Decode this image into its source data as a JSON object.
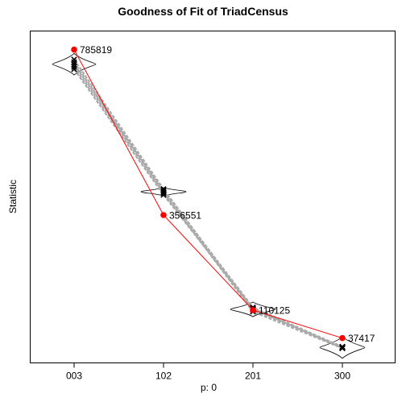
{
  "chart_data": {
    "type": "scatter",
    "title": "Goodness of Fit of TriadCensus",
    "xlabel": "p: 0",
    "ylabel": "Statistic",
    "categories": [
      "003",
      "102",
      "201",
      "300"
    ],
    "ylim": [
      -5000,
      810000
    ],
    "observed": {
      "values": [
        785819,
        356551,
        110125,
        37417
      ],
      "labels": [
        "785819",
        "356551",
        "110125",
        "37417"
      ],
      "color": "#ff0000"
    },
    "simulated": {
      "color": "#aaaaaa",
      "runs": [
        [
          735000,
          409000,
          114000,
          12000
        ],
        [
          741000,
          414000,
          111000,
          13000
        ],
        [
          747000,
          420000,
          117000,
          14500
        ],
        [
          753000,
          416000,
          106000,
          11000
        ],
        [
          760000,
          424000,
          112000,
          15000
        ]
      ],
      "means": [
        748000,
        417000,
        112000,
        13000
      ],
      "spreads": [
        28000,
        11000,
        19000,
        28000
      ],
      "violin_halfwidths": [
        27,
        28,
        28,
        28
      ]
    }
  }
}
